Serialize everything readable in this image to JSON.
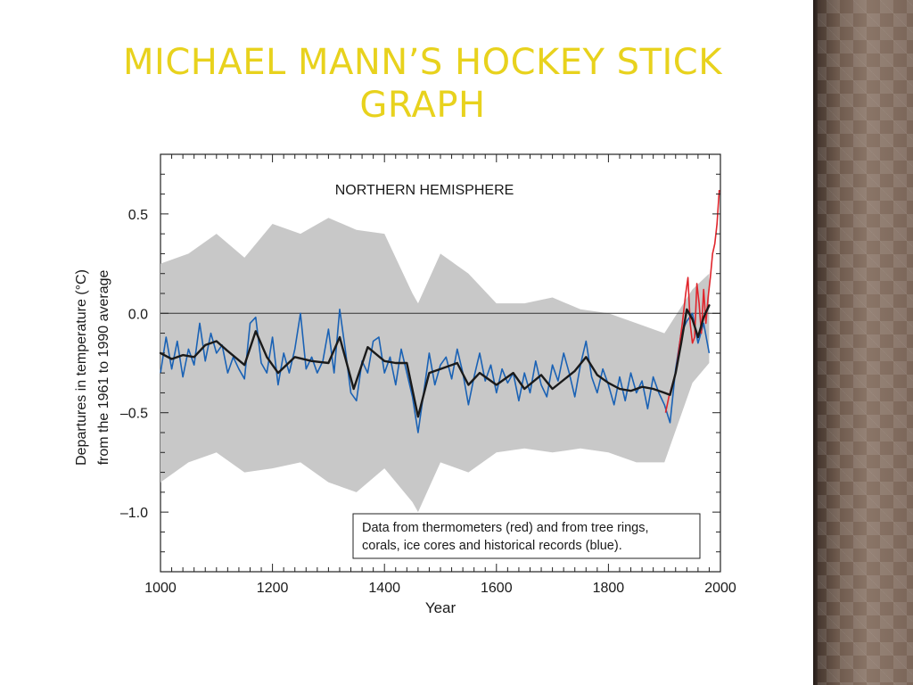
{
  "slide": {
    "title_line1": "Michael Mann’s Hockey Stick",
    "title_line2": "Graph"
  },
  "colors": {
    "title": "#e8d21d",
    "uncertainty": "#c8c8c8",
    "proxy": "#1a62b5",
    "thermometer": "#e0242b",
    "smoothed": "#1a1a1a",
    "panel": "#6f5b4f"
  },
  "chart_data": {
    "type": "line",
    "title": "NORTHERN HEMISPHERE",
    "xlabel": "Year",
    "ylabel_line1": "Departures in temperature (°C)",
    "ylabel_line2": "from the 1961 to 1990 average",
    "xlim": [
      1000,
      2000
    ],
    "ylim": [
      -1.3,
      0.8
    ],
    "x_ticks": [
      1000,
      1200,
      1400,
      1600,
      1800,
      2000
    ],
    "x_tick_labels": [
      "1000",
      "1200",
      "1400",
      "1600",
      "1800",
      "2000"
    ],
    "y_ticks": [
      0.5,
      0.0,
      -0.5,
      -1.0
    ],
    "y_tick_labels": [
      "0.5",
      "0.0",
      "–0.5",
      "–1.0"
    ],
    "reference_line": 0.0,
    "legend": {
      "placement": "bottom-right",
      "line1": "Data from thermometers (red) and from tree rings,",
      "line2": "corals, ice cores and historical records (blue)."
    },
    "series": [
      {
        "key": "smoothed",
        "x": [
          1000,
          1020,
          1040,
          1060,
          1080,
          1100,
          1120,
          1150,
          1170,
          1190,
          1210,
          1240,
          1270,
          1300,
          1320,
          1345,
          1370,
          1400,
          1420,
          1440,
          1460,
          1480,
          1500,
          1530,
          1550,
          1570,
          1600,
          1630,
          1650,
          1680,
          1700,
          1740,
          1760,
          1780,
          1800,
          1820,
          1840,
          1860,
          1880,
          1900,
          1910,
          1920,
          1930,
          1940,
          1950,
          1960,
          1970,
          1980
        ],
        "y": [
          -0.2,
          -0.23,
          -0.21,
          -0.22,
          -0.16,
          -0.14,
          -0.19,
          -0.26,
          -0.09,
          -0.22,
          -0.3,
          -0.22,
          -0.24,
          -0.25,
          -0.12,
          -0.38,
          -0.17,
          -0.24,
          -0.25,
          -0.25,
          -0.52,
          -0.3,
          -0.28,
          -0.25,
          -0.36,
          -0.3,
          -0.36,
          -0.3,
          -0.38,
          -0.31,
          -0.38,
          -0.29,
          -0.22,
          -0.31,
          -0.35,
          -0.38,
          -0.39,
          -0.37,
          -0.38,
          -0.4,
          -0.41,
          -0.3,
          -0.15,
          0.02,
          -0.03,
          -0.12,
          -0.02,
          0.04
        ]
      },
      {
        "key": "proxy",
        "x": [
          1000,
          1010,
          1020,
          1030,
          1040,
          1050,
          1060,
          1070,
          1080,
          1090,
          1100,
          1110,
          1120,
          1130,
          1140,
          1150,
          1160,
          1170,
          1180,
          1190,
          1200,
          1210,
          1220,
          1230,
          1240,
          1250,
          1260,
          1270,
          1280,
          1290,
          1300,
          1310,
          1320,
          1330,
          1340,
          1350,
          1360,
          1370,
          1380,
          1390,
          1400,
          1410,
          1420,
          1430,
          1440,
          1450,
          1460,
          1470,
          1480,
          1490,
          1500,
          1510,
          1520,
          1530,
          1540,
          1550,
          1560,
          1570,
          1580,
          1590,
          1600,
          1610,
          1620,
          1630,
          1640,
          1650,
          1660,
          1670,
          1680,
          1690,
          1700,
          1710,
          1720,
          1730,
          1740,
          1750,
          1760,
          1770,
          1780,
          1790,
          1800,
          1810,
          1820,
          1830,
          1840,
          1850,
          1860,
          1870,
          1880,
          1890,
          1900,
          1910,
          1920,
          1930,
          1940,
          1950,
          1960,
          1970,
          1980
        ],
        "y": [
          -0.3,
          -0.12,
          -0.28,
          -0.14,
          -0.32,
          -0.18,
          -0.26,
          -0.05,
          -0.24,
          -0.1,
          -0.2,
          -0.16,
          -0.3,
          -0.22,
          -0.28,
          -0.33,
          -0.05,
          -0.02,
          -0.25,
          -0.3,
          -0.12,
          -0.36,
          -0.2,
          -0.3,
          -0.18,
          0.0,
          -0.28,
          -0.22,
          -0.3,
          -0.24,
          -0.08,
          -0.3,
          0.02,
          -0.18,
          -0.4,
          -0.44,
          -0.24,
          -0.3,
          -0.14,
          -0.12,
          -0.3,
          -0.22,
          -0.36,
          -0.18,
          -0.3,
          -0.42,
          -0.6,
          -0.4,
          -0.2,
          -0.36,
          -0.26,
          -0.22,
          -0.33,
          -0.18,
          -0.3,
          -0.46,
          -0.32,
          -0.2,
          -0.34,
          -0.26,
          -0.4,
          -0.28,
          -0.35,
          -0.3,
          -0.44,
          -0.3,
          -0.4,
          -0.24,
          -0.36,
          -0.42,
          -0.26,
          -0.34,
          -0.2,
          -0.3,
          -0.42,
          -0.26,
          -0.14,
          -0.32,
          -0.4,
          -0.28,
          -0.36,
          -0.46,
          -0.32,
          -0.44,
          -0.3,
          -0.4,
          -0.34,
          -0.48,
          -0.32,
          -0.4,
          -0.46,
          -0.55,
          -0.28,
          -0.1,
          -0.04,
          0.0,
          -0.15,
          -0.05,
          -0.2
        ]
      },
      {
        "key": "thermometer",
        "x": [
          1902,
          1908,
          1914,
          1920,
          1926,
          1932,
          1938,
          1942,
          1946,
          1950,
          1954,
          1958,
          1962,
          1966,
          1970,
          1974,
          1978,
          1982,
          1986,
          1990,
          1994,
          1998
        ],
        "y": [
          -0.5,
          -0.42,
          -0.36,
          -0.3,
          -0.18,
          -0.05,
          0.1,
          0.18,
          -0.05,
          -0.15,
          -0.12,
          0.15,
          0.05,
          -0.1,
          0.12,
          -0.05,
          0.08,
          0.18,
          0.3,
          0.35,
          0.45,
          0.62
        ]
      },
      {
        "key": "uncertainty",
        "x": [
          1000,
          1050,
          1100,
          1150,
          1200,
          1250,
          1300,
          1350,
          1400,
          1450,
          1460,
          1500,
          1550,
          1600,
          1650,
          1700,
          1750,
          1800,
          1850,
          1900,
          1950,
          1980
        ],
        "upper": [
          0.25,
          0.3,
          0.4,
          0.28,
          0.45,
          0.4,
          0.48,
          0.42,
          0.4,
          0.1,
          0.05,
          0.3,
          0.2,
          0.05,
          0.05,
          0.08,
          0.02,
          0.0,
          -0.05,
          -0.1,
          0.12,
          0.2
        ],
        "lower": [
          -0.85,
          -0.75,
          -0.7,
          -0.8,
          -0.78,
          -0.75,
          -0.85,
          -0.9,
          -0.78,
          -0.95,
          -1.0,
          -0.75,
          -0.8,
          -0.7,
          -0.68,
          -0.7,
          -0.68,
          -0.7,
          -0.75,
          -0.75,
          -0.35,
          -0.25
        ]
      }
    ]
  }
}
